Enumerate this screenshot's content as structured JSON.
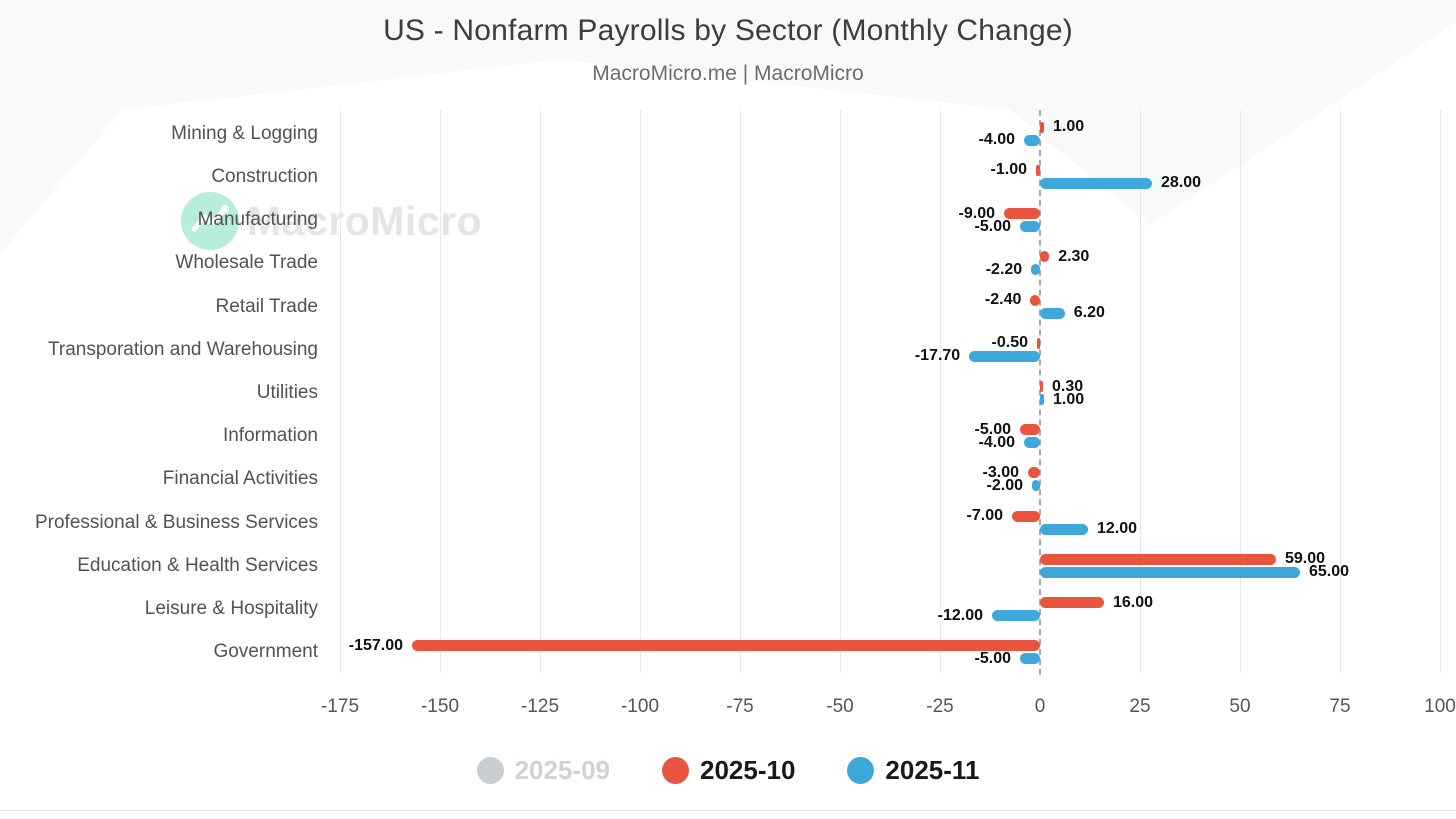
{
  "watermark": {
    "text": "MacroMicro"
  },
  "chart_data": {
    "type": "bar",
    "orientation": "horizontal",
    "title": "US - Nonfarm Payrolls by Sector (Monthly Change)",
    "subtitle": "MacroMicro.me | MacroMicro",
    "categories": [
      "Mining & Logging",
      "Construction",
      "Manufacturing",
      "Wholesale Trade",
      "Retail Trade",
      "Transporation and Warehousing",
      "Utilities",
      "Information",
      "Financial Activities",
      "Professional & Business Services",
      "Education & Health Services",
      "Leisure & Hospitality",
      "Government"
    ],
    "series": [
      {
        "name": "2025-09",
        "color": "#c9ced3",
        "text_color": "#ced3d8",
        "state": "disabled",
        "values": []
      },
      {
        "name": "2025-10",
        "color": "#e8543e",
        "text_color": "#17191c",
        "state": "active",
        "values": [
          1.0,
          -1.0,
          -9.0,
          2.3,
          -2.4,
          -0.5,
          0.3,
          -5.0,
          -3.0,
          -7.0,
          59.0,
          16.0,
          -157.0
        ]
      },
      {
        "name": "2025-11",
        "color": "#3ea8da",
        "text_color": "#17191c",
        "state": "active",
        "values": [
          -4.0,
          28.0,
          -5.0,
          -2.2,
          6.2,
          -17.7,
          1.0,
          -4.0,
          -2.0,
          12.0,
          65.0,
          -12.0,
          -5.0
        ]
      }
    ],
    "value_label_decimals": 2,
    "xticks": [
      -175,
      -150,
      -125,
      -100,
      -75,
      -50,
      -25,
      0,
      25,
      50,
      75,
      100
    ],
    "xlim": [
      -175,
      104
    ],
    "grid": "vertical",
    "zero_line": "dashed",
    "legend_position": "bottom"
  }
}
